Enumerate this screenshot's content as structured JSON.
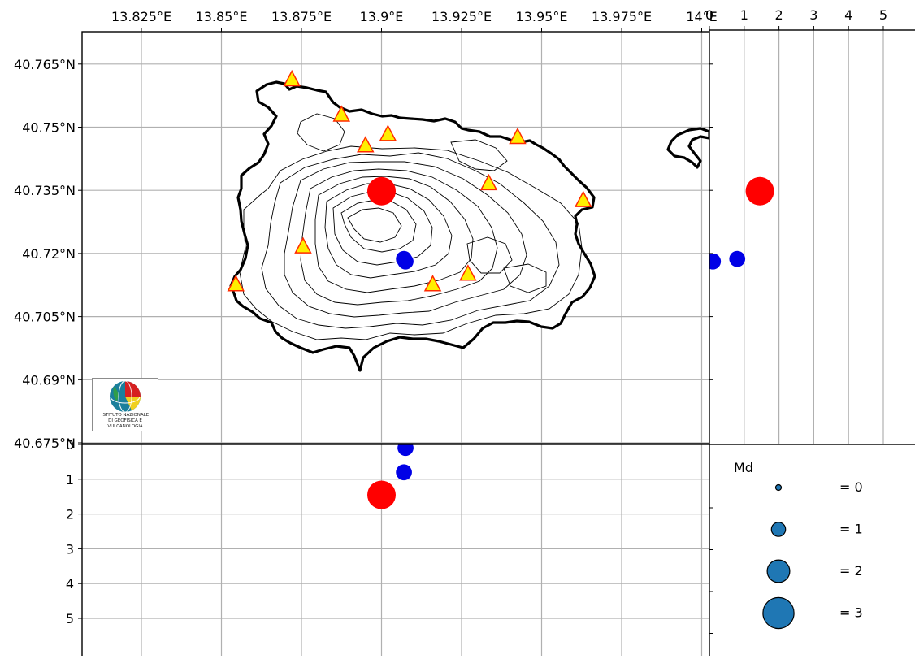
{
  "map": {
    "x_axis": {
      "ticks": [
        "13.825°E",
        "13.85°E",
        "13.875°E",
        "13.9°E",
        "13.925°E",
        "13.95°E",
        "13.975°E",
        "14°E"
      ],
      "range": [
        13.8,
        14.0
      ]
    },
    "y_axis": {
      "ticks": [
        "40.765°N",
        "40.75°N",
        "40.735°N",
        "40.72°N",
        "40.705°N",
        "40.69°N",
        "40.675°N"
      ],
      "range": [
        40.675,
        40.7725
      ]
    },
    "grid": true,
    "stations": [
      {
        "lon": 13.872,
        "lat": 40.7612
      },
      {
        "lon": 13.8875,
        "lat": 40.7528
      },
      {
        "lon": 13.895,
        "lat": 40.7455
      },
      {
        "lon": 13.902,
        "lat": 40.7482
      },
      {
        "lon": 13.9425,
        "lat": 40.7475
      },
      {
        "lon": 13.9335,
        "lat": 40.7365
      },
      {
        "lon": 13.963,
        "lat": 40.7325
      },
      {
        "lon": 13.8755,
        "lat": 40.7215
      },
      {
        "lon": 13.8545,
        "lat": 40.7125
      },
      {
        "lon": 13.916,
        "lat": 40.7125
      },
      {
        "lon": 13.927,
        "lat": 40.715
      }
    ],
    "events": [
      {
        "lon": 13.9,
        "lat": 40.7348,
        "depth": 1.45,
        "md": 3.0,
        "color": "#ff0000"
      },
      {
        "lon": 13.907,
        "lat": 40.7187,
        "depth": 0.8,
        "md": 1.3,
        "color": "#0000e6"
      },
      {
        "lon": 13.9075,
        "lat": 40.7181,
        "depth": 0.1,
        "md": 1.3,
        "color": "#0000e6"
      }
    ],
    "logo_text": [
      "ISTITUTO NAZIONALE",
      "DI GEOFISICA E VULCANOLOGIA"
    ]
  },
  "east_section": {
    "x_ticks": [
      "0",
      "1",
      "2",
      "3",
      "4",
      "5"
    ],
    "depth_range": [
      0,
      6
    ]
  },
  "south_section": {
    "y_ticks": [
      "0",
      "1",
      "2",
      "3",
      "4",
      "5"
    ],
    "depth_range": [
      0,
      6
    ]
  },
  "legend": {
    "title": "Md",
    "items": [
      {
        "label": "= 0",
        "md": 0
      },
      {
        "label": "= 1",
        "md": 1
      },
      {
        "label": "= 2",
        "md": 2
      },
      {
        "label": "= 3",
        "md": 3
      }
    ],
    "marker_color": "#1f77b4"
  },
  "colors": {
    "station_fill": "#ffee00",
    "station_stroke": "#ff2a00"
  }
}
